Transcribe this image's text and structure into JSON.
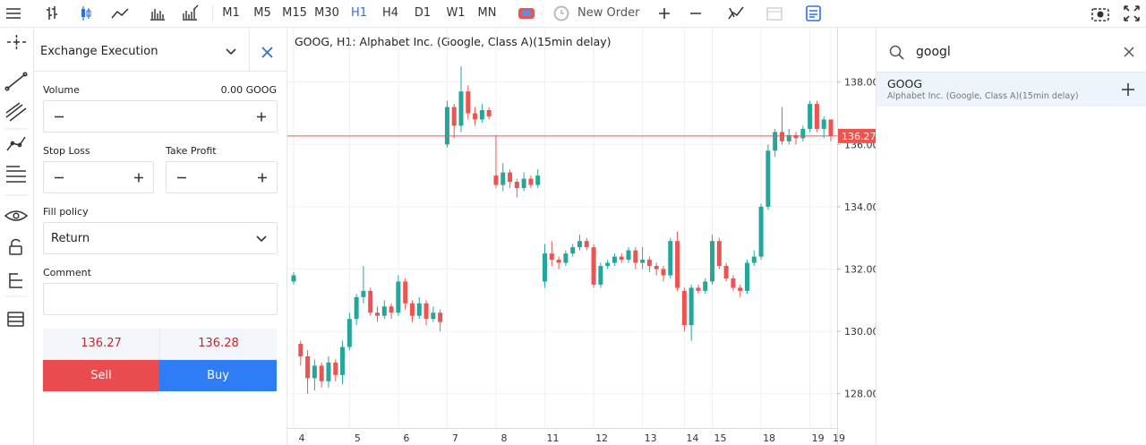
{
  "toolbar": {
    "timeframes": [
      "M1",
      "M5",
      "M15",
      "M30",
      "H1",
      "H4",
      "D1",
      "W1",
      "MN"
    ],
    "active_timeframe": "H1",
    "new_order": "New Order"
  },
  "order_panel": {
    "title": "Exchange Execution",
    "volume_label": "Volume",
    "volume_value": "0.00 GOOG",
    "stop_loss": "Stop Loss",
    "take_profit": "Take Profit",
    "fill_policy_label": "Fill policy",
    "fill_policy": "Return",
    "comment": "Comment",
    "bid": "136.27",
    "ask": "136.28",
    "sell": "Sell",
    "buy": "Buy"
  },
  "search": {
    "query": "googl",
    "results": [
      {
        "symbol": "GOOG",
        "description": "Alphabet Inc. (Google, Class A)(15min delay)"
      }
    ]
  },
  "chart_data": {
    "type": "candlestick",
    "title": "GOOG, H1: Alphabet Inc. (Google, Class A)(15min delay)",
    "up_color": "#26a69a",
    "down_color": "#ef5350",
    "ylim": [
      126.9,
      139.6
    ],
    "yticks": [
      {
        "value": 128,
        "label": "128.00"
      },
      {
        "value": 130,
        "label": "130.00"
      },
      {
        "value": 132,
        "label": "132.00"
      },
      {
        "value": 134,
        "label": "134.00"
      },
      {
        "value": 136,
        "label": "136.00"
      },
      {
        "value": 138,
        "label": "138.00"
      }
    ],
    "price_line": {
      "value": 136.27,
      "label": "136.27",
      "color": "#ef5350"
    },
    "grid": true,
    "categories": [
      "4",
      null,
      null,
      null,
      null,
      null,
      null,
      null,
      "5",
      null,
      null,
      null,
      null,
      null,
      null,
      "6",
      null,
      null,
      null,
      null,
      null,
      null,
      "7",
      null,
      null,
      null,
      null,
      null,
      null,
      "8",
      null,
      null,
      null,
      null,
      null,
      null,
      "11",
      null,
      null,
      null,
      null,
      null,
      null,
      "12",
      null,
      null,
      null,
      null,
      null,
      null,
      "13",
      null,
      null,
      null,
      null,
      null,
      "14",
      null,
      null,
      null,
      "15",
      null,
      null,
      null,
      null,
      null,
      null,
      "18",
      null,
      null,
      null,
      null,
      null,
      null,
      "19",
      null,
      null,
      "19"
    ],
    "candles": [
      [
        131.6,
        131.9,
        131.5,
        131.8
      ],
      [
        129.6,
        129.7,
        128.9,
        129.2
      ],
      [
        129.2,
        129.4,
        128.0,
        128.5
      ],
      [
        128.5,
        129.1,
        128.1,
        128.9
      ],
      [
        128.9,
        129.0,
        128.2,
        128.4
      ],
      [
        128.4,
        129.2,
        128.2,
        129.0
      ],
      [
        129.0,
        129.1,
        128.4,
        128.6
      ],
      [
        128.6,
        129.7,
        128.3,
        129.5
      ],
      [
        129.5,
        130.6,
        129.4,
        130.4
      ],
      [
        130.4,
        131.2,
        130.2,
        131.1
      ],
      [
        131.1,
        132.1,
        130.9,
        131.3
      ],
      [
        131.3,
        131.4,
        130.5,
        130.6
      ],
      [
        130.6,
        130.8,
        130.3,
        130.5
      ],
      [
        130.5,
        131.0,
        130.4,
        130.8
      ],
      [
        130.8,
        130.9,
        130.4,
        130.6
      ],
      [
        130.6,
        131.8,
        130.5,
        131.6
      ],
      [
        131.6,
        131.7,
        130.7,
        130.9
      ],
      [
        130.9,
        131.0,
        130.3,
        130.5
      ],
      [
        130.5,
        131.1,
        130.4,
        130.9
      ],
      [
        130.9,
        131.0,
        130.2,
        130.4
      ],
      [
        130.4,
        130.8,
        130.3,
        130.6
      ],
      [
        130.6,
        130.7,
        130.0,
        130.3
      ],
      [
        136.0,
        137.4,
        135.9,
        137.2
      ],
      [
        137.2,
        137.3,
        136.2,
        136.6
      ],
      [
        136.6,
        138.5,
        136.4,
        137.7
      ],
      [
        137.7,
        137.9,
        136.8,
        137.0
      ],
      [
        137.0,
        137.2,
        136.6,
        136.8
      ],
      [
        136.8,
        137.3,
        136.7,
        137.1
      ],
      [
        137.1,
        137.2,
        136.8,
        136.9
      ],
      [
        135.0,
        136.3,
        134.6,
        134.7
      ],
      [
        134.7,
        135.4,
        134.5,
        135.1
      ],
      [
        135.1,
        135.2,
        134.6,
        134.8
      ],
      [
        134.8,
        134.9,
        134.3,
        134.6
      ],
      [
        134.6,
        135.1,
        134.5,
        134.9
      ],
      [
        134.9,
        135.0,
        134.6,
        134.7
      ],
      [
        134.7,
        135.2,
        134.6,
        135.0
      ],
      [
        131.6,
        132.8,
        131.4,
        132.5
      ],
      [
        132.5,
        132.9,
        132.1,
        132.3
      ],
      [
        132.3,
        132.4,
        132.0,
        132.2
      ],
      [
        132.2,
        132.6,
        132.1,
        132.5
      ],
      [
        132.5,
        132.8,
        132.4,
        132.7
      ],
      [
        132.7,
        133.1,
        132.6,
        132.9
      ],
      [
        132.9,
        133.0,
        132.6,
        132.7
      ],
      [
        132.7,
        132.8,
        131.4,
        131.5
      ],
      [
        131.5,
        132.2,
        131.4,
        132.1
      ],
      [
        132.1,
        132.3,
        132.0,
        132.2
      ],
      [
        132.2,
        132.5,
        132.1,
        132.4
      ],
      [
        132.4,
        132.5,
        132.2,
        132.3
      ],
      [
        132.3,
        132.7,
        132.2,
        132.6
      ],
      [
        132.6,
        132.7,
        132.0,
        132.2
      ],
      [
        132.2,
        132.7,
        132.0,
        132.3
      ],
      [
        132.3,
        132.4,
        131.9,
        132.1
      ],
      [
        132.1,
        132.2,
        131.8,
        132.0
      ],
      [
        132.0,
        132.1,
        131.6,
        131.8
      ],
      [
        131.8,
        133.0,
        131.7,
        132.9
      ],
      [
        132.9,
        133.2,
        131.3,
        131.4
      ],
      [
        131.3,
        131.4,
        130.0,
        130.2
      ],
      [
        130.2,
        131.5,
        129.7,
        131.4
      ],
      [
        131.4,
        131.5,
        131.2,
        131.3
      ],
      [
        131.3,
        131.7,
        131.2,
        131.6
      ],
      [
        131.6,
        133.1,
        131.5,
        132.9
      ],
      [
        132.9,
        133.0,
        132.0,
        132.1
      ],
      [
        132.1,
        132.2,
        131.6,
        131.7
      ],
      [
        131.7,
        131.8,
        131.3,
        131.4
      ],
      [
        131.4,
        131.5,
        131.1,
        131.3
      ],
      [
        131.3,
        132.3,
        131.2,
        132.2
      ],
      [
        132.2,
        132.6,
        132.1,
        132.4
      ],
      [
        132.4,
        134.1,
        132.3,
        134.0
      ],
      [
        134.0,
        136.0,
        133.9,
        135.8
      ],
      [
        135.8,
        136.5,
        135.6,
        136.4
      ],
      [
        136.4,
        137.2,
        136.0,
        136.1
      ],
      [
        136.1,
        136.5,
        136.0,
        136.3
      ],
      [
        136.3,
        136.4,
        136.0,
        136.2
      ],
      [
        136.2,
        136.6,
        136.1,
        136.5
      ],
      [
        136.5,
        137.4,
        136.4,
        137.3
      ],
      [
        137.3,
        137.4,
        136.4,
        136.5
      ],
      [
        136.5,
        136.9,
        136.2,
        136.8
      ],
      [
        136.8,
        136.8,
        136.1,
        136.27
      ]
    ]
  }
}
